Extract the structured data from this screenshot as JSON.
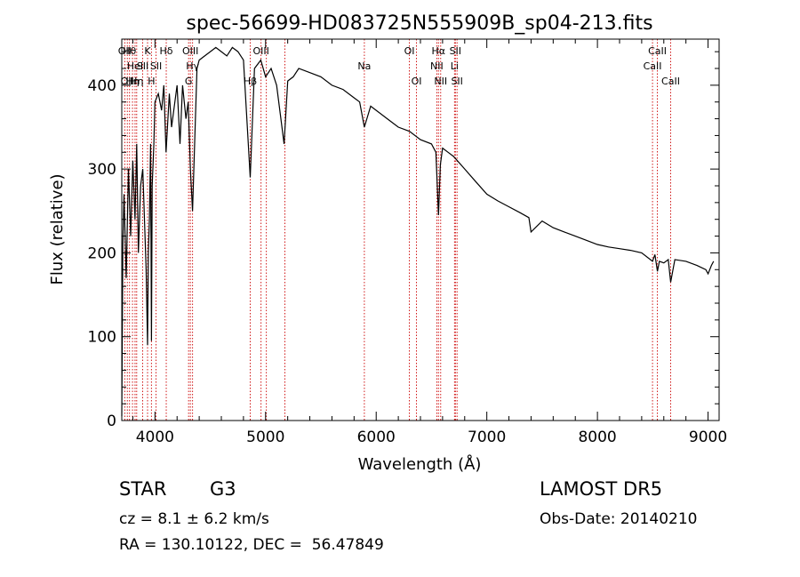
{
  "chart_data": {
    "type": "line",
    "title": "spec-56699-HD083725N555909B_sp04-213.fits",
    "xlabel": "Wavelength (Å)",
    "ylabel": "Flux (relative)",
    "xlim": [
      3700,
      9100
    ],
    "ylim": [
      0,
      455
    ],
    "x_ticks": [
      4000,
      5000,
      6000,
      7000,
      8000,
      9000
    ],
    "y_ticks": [
      0,
      100,
      200,
      300,
      400
    ],
    "grid": false,
    "line_color": "#000000",
    "marker_color": "#cc0000",
    "series": [
      {
        "x": [
          3700,
          3710,
          3720,
          3740,
          3760,
          3780,
          3800,
          3820,
          3835,
          3850,
          3870,
          3890,
          3900,
          3920,
          3933,
          3940,
          3950,
          3960,
          3968,
          3975,
          3990,
          4000,
          4030,
          4060,
          4080,
          4100,
          4130,
          4150,
          4200,
          4226,
          4250,
          4280,
          4300,
          4320,
          4340,
          4380,
          4400,
          4450,
          4500,
          4550,
          4600,
          4650,
          4700,
          4750,
          4800,
          4861,
          4900,
          4957,
          5000,
          5050,
          5100,
          5167,
          5200,
          5250,
          5300,
          5400,
          5500,
          5600,
          5700,
          5800,
          5850,
          5893,
          5950,
          6000,
          6100,
          6200,
          6300,
          6400,
          6500,
          6540,
          6563,
          6580,
          6600,
          6650,
          6700,
          6800,
          6900,
          7000,
          7100,
          7200,
          7300,
          7380,
          7400,
          7500,
          7600,
          7700,
          7800,
          7900,
          8000,
          8100,
          8200,
          8300,
          8400,
          8498,
          8520,
          8542,
          8560,
          8600,
          8640,
          8662,
          8700,
          8800,
          8900,
          8980,
          9000,
          9030,
          9050
        ],
        "y": [
          5,
          210,
          270,
          170,
          300,
          220,
          310,
          240,
          330,
          200,
          280,
          300,
          260,
          180,
          90,
          200,
          240,
          330,
          95,
          280,
          330,
          380,
          390,
          370,
          400,
          320,
          390,
          350,
          400,
          330,
          400,
          360,
          380,
          300,
          250,
          420,
          430,
          435,
          440,
          445,
          440,
          435,
          445,
          440,
          430,
          290,
          420,
          430,
          410,
          420,
          400,
          330,
          405,
          410,
          420,
          415,
          410,
          400,
          395,
          385,
          380,
          350,
          375,
          370,
          360,
          350,
          345,
          335,
          330,
          320,
          245,
          305,
          325,
          320,
          315,
          300,
          285,
          270,
          262,
          255,
          248,
          242,
          225,
          238,
          230,
          225,
          220,
          215,
          210,
          207,
          205,
          203,
          200,
          190,
          198,
          178,
          190,
          188,
          192,
          165,
          192,
          190,
          185,
          180,
          175,
          185,
          190
        ]
      }
    ],
    "lines": [
      {
        "x": 3727,
        "label": "OII",
        "row": 1
      },
      {
        "x": 3750,
        "label": "OII",
        "row": 3
      },
      {
        "x": 3770,
        "label": "Hθ",
        "row": 1
      },
      {
        "x": 3797,
        "label": "Hη",
        "row": 3
      },
      {
        "x": 3820,
        "label": "HeI",
        "row": 2
      },
      {
        "x": 3835,
        "label": "Hη",
        "row": 3
      },
      {
        "x": 3889,
        "label": "SII",
        "row": 2
      },
      {
        "x": 3933,
        "label": "K",
        "row": 1
      },
      {
        "x": 3968,
        "label": "H",
        "row": 3
      },
      {
        "x": 4010,
        "label": "SII",
        "row": 2
      },
      {
        "x": 4102,
        "label": "Hδ",
        "row": 1
      },
      {
        "x": 4304,
        "label": "G",
        "row": 3
      },
      {
        "x": 4320,
        "label": "OIII",
        "row": 1
      },
      {
        "x": 4340,
        "label": "Hγ",
        "row": 2
      },
      {
        "x": 4861,
        "label": "Hβ",
        "row": 3
      },
      {
        "x": 4959,
        "label": "OIII",
        "row": 1
      },
      {
        "x": 5007,
        "label": "",
        "row": 1
      },
      {
        "x": 5175,
        "label": "",
        "row": 1
      },
      {
        "x": 5893,
        "label": "Na",
        "row": 2
      },
      {
        "x": 6300,
        "label": "OI",
        "row": 1
      },
      {
        "x": 6364,
        "label": "OI",
        "row": 3
      },
      {
        "x": 6548,
        "label": "NII",
        "row": 2
      },
      {
        "x": 6563,
        "label": "Hα",
        "row": 1
      },
      {
        "x": 6583,
        "label": "NII",
        "row": 3
      },
      {
        "x": 6708,
        "label": "Li",
        "row": 2
      },
      {
        "x": 6716,
        "label": "SII",
        "row": 1
      },
      {
        "x": 6731,
        "label": "SII",
        "row": 3
      },
      {
        "x": 8498,
        "label": "CaII",
        "row": 2
      },
      {
        "x": 8542,
        "label": "CaII",
        "row": 1
      },
      {
        "x": 8662,
        "label": "CaII",
        "row": 3
      }
    ]
  },
  "info": {
    "object_class": "STAR",
    "subclass": "G3",
    "survey": "LAMOST DR5",
    "cz_line": "cz = 8.1 ± 6.2 km/s",
    "obs_date": "Obs-Date: 20140210",
    "coords": "RA = 130.10122, DEC =  56.47849"
  }
}
